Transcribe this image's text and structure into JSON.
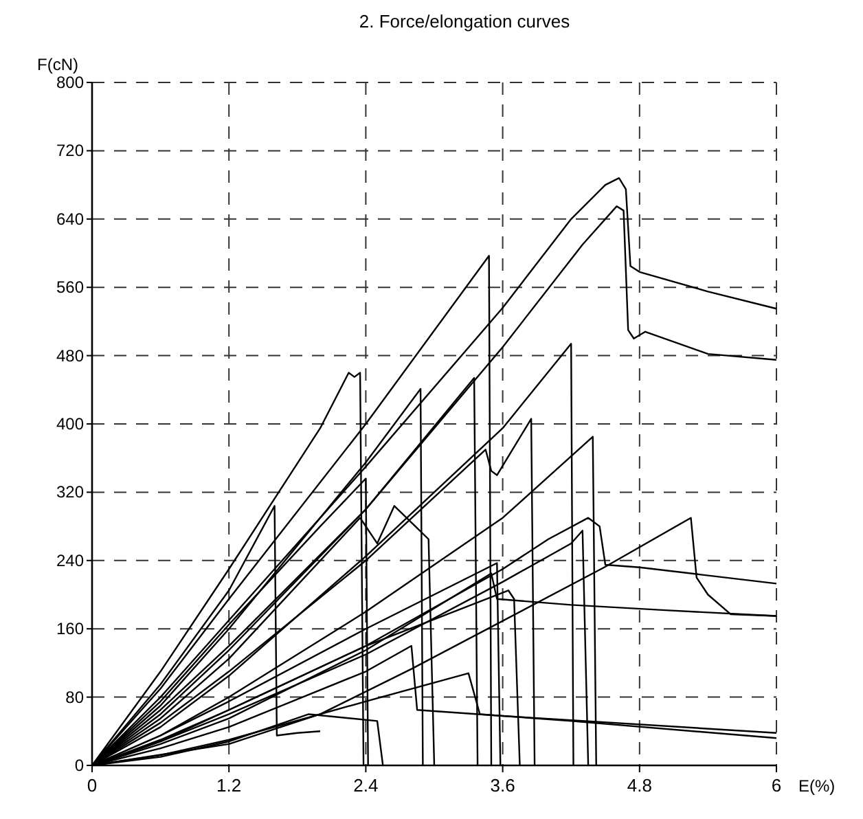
{
  "chart_data": {
    "type": "line",
    "title": "2.  Force/elongation curves",
    "xlabel": "E(%)",
    "ylabel": "F(cN)",
    "xlim": [
      0,
      6
    ],
    "xticks": [
      0,
      1.2,
      2.4,
      3.6,
      4.8,
      6
    ],
    "ylim": [
      0,
      800
    ],
    "yticks": [
      0,
      80,
      160,
      240,
      320,
      400,
      480,
      560,
      640,
      720,
      800
    ],
    "grid": true,
    "series": [
      {
        "color": "#000000",
        "x": [
          0,
          0.6,
          1.2,
          2.4,
          3.6,
          4.2,
          4.5,
          4.62,
          4.68,
          4.72,
          4.8,
          5.4,
          6
        ],
        "values": [
          0,
          80,
          170,
          350,
          536,
          640,
          680,
          688,
          675,
          585,
          578,
          555,
          535
        ]
      },
      {
        "color": "#000000",
        "x": [
          0,
          0.6,
          1.2,
          2.4,
          3.6,
          4.3,
          4.6,
          4.66,
          4.7,
          4.75,
          4.85,
          5.4,
          6
        ],
        "values": [
          0,
          65,
          140,
          300,
          490,
          610,
          655,
          650,
          510,
          500,
          508,
          482,
          475
        ]
      },
      {
        "color": "#000000",
        "x": [
          0,
          0.6,
          1.2,
          2.4,
          3.48,
          3.5
        ],
        "values": [
          0,
          90,
          195,
          400,
          597,
          0
        ]
      },
      {
        "color": "#000000",
        "x": [
          0,
          0.6,
          1.2,
          2.0,
          2.25,
          2.3,
          2.35,
          2.38
        ],
        "values": [
          0,
          110,
          230,
          395,
          460,
          455,
          460,
          0
        ]
      },
      {
        "color": "#000000",
        "x": [
          0,
          0.6,
          1.2,
          2.4,
          2.88,
          2.9
        ],
        "values": [
          0,
          70,
          160,
          355,
          441,
          0
        ]
      },
      {
        "color": "#000000",
        "x": [
          0,
          0.6,
          1.2,
          2.4,
          3.35,
          3.38
        ],
        "values": [
          0,
          60,
          135,
          300,
          454,
          0
        ]
      },
      {
        "color": "#000000",
        "x": [
          0,
          0.6,
          1.2,
          2.4,
          3.6,
          4.2,
          4.22
        ],
        "values": [
          0,
          45,
          105,
          245,
          395,
          494,
          0
        ]
      },
      {
        "color": "#000000",
        "x": [
          0,
          0.6,
          1.2,
          2.4,
          3.45,
          3.5,
          3.55,
          3.85,
          3.88
        ],
        "values": [
          0,
          50,
          110,
          240,
          370,
          345,
          340,
          406,
          0
        ]
      },
      {
        "color": "#000000",
        "x": [
          0,
          0.6,
          1.2,
          2.4,
          3.6,
          4.39,
          4.42
        ],
        "values": [
          0,
          35,
          80,
          180,
          290,
          385,
          0
        ]
      },
      {
        "color": "#000000",
        "x": [
          0,
          0.6,
          1.2,
          1.6,
          1.62,
          1.8,
          2.0
        ],
        "values": [
          0,
          95,
          205,
          304,
          35,
          38,
          40
        ]
      },
      {
        "color": "#000000",
        "x": [
          0,
          0.6,
          1.2,
          2.0,
          2.4,
          2.42
        ],
        "values": [
          0,
          75,
          165,
          280,
          336,
          0
        ]
      },
      {
        "color": "#000000",
        "x": [
          0,
          0.6,
          1.2,
          2.35,
          2.5,
          2.65,
          2.95,
          3.0
        ],
        "values": [
          0,
          55,
          125,
          290,
          260,
          304,
          265,
          0
        ]
      },
      {
        "color": "#000000",
        "x": [
          0,
          0.6,
          1.2,
          2.4,
          3.6,
          4.0,
          4.35,
          4.45,
          4.5,
          4.8,
          6
        ],
        "values": [
          0,
          30,
          65,
          140,
          230,
          265,
          290,
          280,
          235,
          232,
          213
        ]
      },
      {
        "color": "#000000",
        "x": [
          0,
          0.6,
          1.2,
          2.4,
          3.6,
          4.2,
          4.3,
          4.35
        ],
        "values": [
          0,
          28,
          60,
          130,
          215,
          260,
          275,
          0
        ]
      },
      {
        "color": "#000000",
        "x": [
          0,
          1.2,
          2.0,
          2.8,
          4.49,
          5.25,
          5.3,
          5.4,
          5.6,
          6
        ],
        "values": [
          0,
          25,
          60,
          113,
          232,
          290,
          220,
          200,
          177,
          175
        ]
      },
      {
        "color": "#000000",
        "x": [
          0,
          0.6,
          1.2,
          2.4,
          3.5,
          3.55,
          4.2,
          5,
          6
        ],
        "values": [
          0,
          25,
          55,
          135,
          225,
          195,
          188,
          182,
          175
        ]
      },
      {
        "color": "#000000",
        "x": [
          0,
          0.6,
          1.2,
          2.4,
          3.55,
          3.58
        ],
        "values": [
          0,
          35,
          75,
          160,
          237,
          0
        ]
      },
      {
        "color": "#000000",
        "x": [
          0,
          0.6,
          1.2,
          2.4,
          3.65,
          3.7,
          3.75
        ],
        "values": [
          0,
          28,
          65,
          140,
          205,
          195,
          0
        ]
      },
      {
        "color": "#000000",
        "x": [
          0,
          0.6,
          1.2,
          1.9,
          2.5,
          2.55
        ],
        "values": [
          0,
          10,
          28,
          60,
          52,
          0
        ]
      },
      {
        "color": "#000000",
        "x": [
          0,
          0.6,
          1.2,
          2.4,
          3.3,
          3.4,
          4.2,
          6
        ],
        "values": [
          0,
          12,
          30,
          75,
          108,
          60,
          52,
          32
        ]
      },
      {
        "color": "#000000",
        "x": [
          0,
          0.6,
          1.2,
          2.4,
          2.8,
          2.85,
          3.6,
          6
        ],
        "values": [
          0,
          20,
          45,
          110,
          140,
          65,
          58,
          38
        ]
      }
    ]
  }
}
